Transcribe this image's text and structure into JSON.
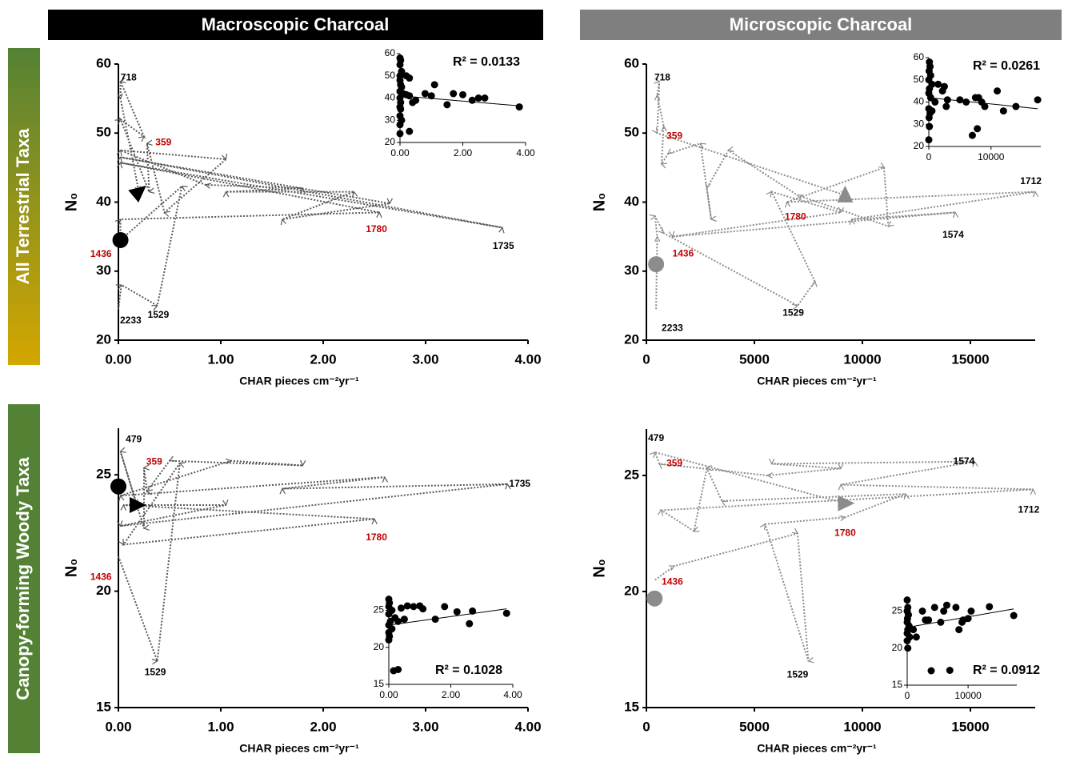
{
  "column_headers": [
    "Macroscopic Charcoal",
    "Microscopic Charcoal"
  ],
  "row_headers": [
    "All Terrestrial Taxa",
    "Canopy-forming Woody Taxa"
  ],
  "chart_data": [
    {
      "type": "line",
      "x_label": "CHAR pieces cm⁻²yr⁻¹",
      "y_label": "N₀",
      "color": "#595959",
      "x": [
        0.0,
        0.03,
        0.38,
        0.62,
        0.02,
        0.02,
        2.55,
        0.02,
        3.75,
        0.02,
        2.65,
        1.6,
        2.3,
        1.05,
        1.8,
        0.85,
        0.02,
        1.05,
        0.45,
        0.28,
        0.3,
        0.02,
        0.25,
        0.02,
        0.02,
        0.2
      ],
      "values": [
        24.5,
        28.0,
        25.0,
        42.3,
        34.5,
        37.5,
        38.5,
        45.7,
        36.3,
        46.5,
        39.8,
        37.5,
        41.5,
        41.5,
        42.0,
        42.5,
        47.5,
        46.2,
        38.5,
        48.5,
        41.5,
        52.0,
        49.5,
        57.5,
        55.0,
        41.5
      ],
      "xlim": [
        0,
        4
      ],
      "xticks": [
        {
          "value": 0,
          "label": "0.00"
        },
        {
          "value": 1,
          "label": "1.00"
        },
        {
          "value": 2,
          "label": "2.00"
        },
        {
          "value": 3,
          "label": "3.00"
        },
        {
          "value": 4,
          "label": "4.00"
        }
      ],
      "ylim": [
        20,
        60
      ],
      "yticks": [
        20,
        30,
        40,
        50,
        60
      ],
      "markers": [
        {
          "shape": "circle",
          "x": 0.02,
          "y": 34.5,
          "color": "#000000"
        },
        {
          "shape": "triangle",
          "x": 0.2,
          "y": 41.5,
          "color": "#000000"
        }
      ],
      "annotations": [
        {
          "text": "718",
          "x": 0.1,
          "y": 58,
          "color": "#000000"
        },
        {
          "text": "359",
          "x": 0.44,
          "y": 48.6,
          "color": "#c00000"
        },
        {
          "text": "1780",
          "x": 2.52,
          "y": 36,
          "color": "#c00000"
        },
        {
          "text": "1735",
          "x": 3.76,
          "y": 33.6,
          "color": "#000000"
        },
        {
          "text": "1529",
          "x": 0.39,
          "y": 23.6,
          "color": "#000000"
        },
        {
          "text": "2233",
          "x": 0.12,
          "y": 22.8,
          "color": "#000000"
        },
        {
          "text": "1436",
          "x": -0.17,
          "y": 32.4,
          "color": "#c00000"
        }
      ],
      "inset": {
        "type": "scatter",
        "color": "#000000",
        "r2_label": "R² = 0.0133",
        "x": [
          0,
          0.02,
          0,
          0.05,
          0,
          0.2,
          0.3,
          0,
          0.02,
          0.05,
          0,
          0.1,
          0.2,
          0.3,
          0,
          0.02,
          0.4,
          0.5,
          0,
          0.02,
          0,
          0.05,
          0,
          0.3,
          0,
          0.8,
          1.0,
          1.1,
          1.5,
          1.7,
          2.0,
          2.3,
          2.5,
          2.7,
          3.8
        ],
        "y": [
          58,
          57,
          55,
          52,
          50,
          50,
          49,
          48,
          46,
          45,
          43,
          42,
          41.5,
          41,
          40,
          38,
          38,
          39,
          36,
          35,
          32,
          30,
          28,
          25,
          24,
          42,
          41,
          46,
          37,
          42,
          41.5,
          39,
          40,
          40,
          36
        ],
        "trend": {
          "x": [
            0,
            3.8
          ],
          "y": [
            41,
            36.5
          ]
        },
        "xlim": [
          0,
          4
        ],
        "xticks": [
          {
            "value": 0,
            "label": "0.00"
          },
          {
            "value": 2,
            "label": "2.00"
          },
          {
            "value": 4,
            "label": "4.00"
          }
        ],
        "ylim": [
          20,
          60
        ],
        "yticks": [
          20,
          30,
          40,
          50,
          60
        ]
      }
    },
    {
      "type": "line",
      "x_label": "CHAR pieces cm⁻²yr⁻¹",
      "y_label": "N₀",
      "color": "#8c8c8c",
      "x": [
        450,
        500,
        400,
        800,
        7000,
        7800,
        5800,
        9000,
        1200,
        14300,
        9500,
        18000,
        6500,
        11000,
        11200,
        7000,
        3800,
        2800,
        3000,
        2500,
        1000,
        700,
        800,
        500,
        600,
        500,
        9200
      ],
      "values": [
        24.5,
        35,
        38,
        35.5,
        25,
        28.5,
        41.5,
        38.5,
        35,
        38.5,
        37.5,
        41.5,
        40,
        45,
        36.5,
        41,
        47.5,
        42,
        37.5,
        48.5,
        47,
        45.5,
        51,
        55.5,
        57.5,
        50,
        41
      ],
      "xlim": [
        0,
        18000
      ],
      "xticks": [
        0,
        5000,
        10000,
        15000
      ],
      "ylim": [
        20,
        60
      ],
      "yticks": [
        20,
        30,
        40,
        50,
        60
      ],
      "markers": [
        {
          "shape": "circle",
          "x": 450,
          "y": 31,
          "color": "#8c8c8c"
        },
        {
          "shape": "triangle",
          "x": 9200,
          "y": 41,
          "color": "#8c8c8c"
        }
      ],
      "annotations": [
        {
          "text": "718",
          "x": 740,
          "y": 58,
          "color": "#000000"
        },
        {
          "text": "359",
          "x": 1300,
          "y": 49.5,
          "color": "#c00000"
        },
        {
          "text": "1780",
          "x": 6900,
          "y": 37.8,
          "color": "#c00000"
        },
        {
          "text": "1574",
          "x": 14200,
          "y": 35.2,
          "color": "#000000"
        },
        {
          "text": "1712",
          "x": 17800,
          "y": 43,
          "color": "#000000"
        },
        {
          "text": "1436",
          "x": 1700,
          "y": 32.5,
          "color": "#c00000"
        },
        {
          "text": "2233",
          "x": 1200,
          "y": 21.7,
          "color": "#000000"
        },
        {
          "text": "1529",
          "x": 6800,
          "y": 23.9,
          "color": "#000000"
        }
      ],
      "inset": {
        "type": "scatter",
        "color": "#000000",
        "r2_label": "R² = 0.0261",
        "x": [
          100,
          200,
          50,
          300,
          0,
          500,
          100,
          1500,
          2200,
          2500,
          0,
          300,
          1000,
          3000,
          5000,
          6000,
          7500,
          8000,
          8500,
          9000,
          11000,
          12000,
          14000,
          17500,
          0,
          200,
          500,
          50,
          100,
          0,
          7000,
          7800,
          2800
        ],
        "y": [
          58,
          56,
          54,
          52,
          50,
          48,
          46,
          48,
          45,
          47,
          44,
          42,
          40,
          41,
          41,
          40,
          42,
          42,
          40,
          38,
          45,
          36,
          38,
          41,
          37,
          35,
          36,
          33,
          29,
          23,
          25,
          28,
          38
        ],
        "trend": {
          "x": [
            0,
            17500
          ],
          "y": [
            42,
            37
          ]
        },
        "xlim": [
          0,
          18000
        ],
        "xticks": [
          0,
          10000
        ],
        "ylim": [
          20,
          60
        ],
        "yticks": [
          20,
          30,
          40,
          50,
          60
        ]
      }
    },
    {
      "type": "line",
      "x_label": "CHAR pieces cm⁻²yr⁻¹",
      "y_label": "N₀",
      "color": "#595959",
      "x": [
        0.0,
        0.38,
        0.6,
        0.05,
        2.5,
        0.05,
        1.05,
        0.02,
        3.8,
        1.6,
        2.6,
        0.02,
        1.1,
        1.8,
        0.5,
        0.28,
        0.25,
        0.25,
        0.02,
        0.18
      ],
      "values": [
        21.5,
        17.0,
        25.5,
        22.0,
        23.1,
        23.7,
        23.7,
        22.8,
        24.6,
        24.4,
        24.9,
        24.1,
        25.6,
        25.4,
        25.6,
        24.3,
        25.3,
        22.7,
        26.0,
        23.7
      ],
      "xlim": [
        0,
        4
      ],
      "xticks": [
        {
          "value": 0,
          "label": "0.00"
        },
        {
          "value": 1,
          "label": "1.00"
        },
        {
          "value": 2,
          "label": "2.00"
        },
        {
          "value": 3,
          "label": "3.00"
        },
        {
          "value": 4,
          "label": "4.00"
        }
      ],
      "ylim": [
        15,
        27
      ],
      "yticks": [
        15,
        20,
        25
      ],
      "markers": [
        {
          "shape": "circle",
          "x": 0.0,
          "y": 24.5,
          "color": "#000000"
        },
        {
          "shape": "triangle",
          "x": 0.18,
          "y": 23.7,
          "color": "#000000"
        }
      ],
      "annotations": [
        {
          "text": "479",
          "x": 0.15,
          "y": 26.5,
          "color": "#000000"
        },
        {
          "text": "359",
          "x": 0.35,
          "y": 25.55,
          "color": "#c00000"
        },
        {
          "text": "1735",
          "x": 3.92,
          "y": 24.6,
          "color": "#000000"
        },
        {
          "text": "1780",
          "x": 2.52,
          "y": 22.3,
          "color": "#c00000"
        },
        {
          "text": "1529",
          "x": 0.36,
          "y": 16.5,
          "color": "#000000"
        },
        {
          "text": "1436",
          "x": -0.17,
          "y": 20.6,
          "color": "#c00000"
        }
      ],
      "inset": {
        "type": "scatter",
        "color": "#000000",
        "r2_label": "R² = 0.1028",
        "x": [
          0,
          0.02,
          0,
          0.1,
          0,
          0.2,
          0.05,
          0,
          0.1,
          0,
          0.02,
          0,
          0.3,
          0.4,
          0.6,
          0.8,
          1.0,
          1.1,
          1.5,
          1.8,
          2.2,
          2.6,
          2.7,
          3.8,
          0.3,
          0.5
        ],
        "y": [
          26.5,
          26,
          25.5,
          25,
          24.5,
          24,
          23.5,
          23,
          22.5,
          22,
          21.5,
          21,
          23.5,
          25.3,
          25.6,
          25.5,
          25.6,
          25.2,
          23.8,
          25.5,
          24.8,
          23.2,
          24.9,
          24.6,
          17,
          23.8
        ],
        "trend": {
          "x": [
            0,
            3.8
          ],
          "y": [
            23,
            25.2
          ]
        },
        "xlim": [
          0,
          4
        ],
        "xticks": [
          {
            "value": 0,
            "label": "0.00"
          },
          {
            "value": 2,
            "label": "2.00"
          },
          {
            "value": 4,
            "label": "4.00"
          }
        ],
        "ylim": [
          15,
          27
        ],
        "yticks": [
          15,
          20,
          25
        ]
      }
    },
    {
      "type": "line",
      "x_label": "CHAR pieces cm⁻²yr⁻¹",
      "y_label": "N₀",
      "color": "#8c8c8c",
      "x": [
        400,
        1300,
        7000,
        7500,
        5500,
        9200,
        12000,
        3500,
        2800,
        2200,
        700,
        17900,
        9000,
        15200,
        5800,
        9000,
        5600,
        600,
        400,
        9200
      ],
      "values": [
        20.5,
        21.1,
        22.5,
        17.0,
        22.9,
        23.2,
        24.2,
        23.9,
        25.3,
        22.6,
        23.5,
        24.4,
        24.6,
        25.6,
        25.5,
        25.3,
        25.0,
        25.5,
        26.0,
        23.8
      ],
      "xlim": [
        0,
        18000
      ],
      "xticks": [
        0,
        5000,
        10000,
        15000
      ],
      "ylim": [
        15,
        27
      ],
      "yticks": [
        15,
        20,
        25
      ],
      "markers": [
        {
          "shape": "circle",
          "x": 380,
          "y": 19.7,
          "color": "#8c8c8c"
        },
        {
          "shape": "triangle",
          "x": 9200,
          "y": 23.8,
          "color": "#8c8c8c"
        }
      ],
      "annotations": [
        {
          "text": "479",
          "x": 450,
          "y": 26.6,
          "color": "#000000"
        },
        {
          "text": "359",
          "x": 1300,
          "y": 25.5,
          "color": "#c00000"
        },
        {
          "text": "1574",
          "x": 14700,
          "y": 25.6,
          "color": "#000000"
        },
        {
          "text": "1712",
          "x": 17700,
          "y": 23.5,
          "color": "#000000"
        },
        {
          "text": "1780",
          "x": 9200,
          "y": 22.5,
          "color": "#c00000"
        },
        {
          "text": "1436",
          "x": 1200,
          "y": 20.4,
          "color": "#c00000"
        },
        {
          "text": "1529",
          "x": 7000,
          "y": 16.4,
          "color": "#000000"
        }
      ],
      "inset": {
        "type": "scatter",
        "color": "#000000",
        "r2_label": "R² = 0.0912",
        "x": [
          0,
          100,
          0,
          200,
          50,
          0,
          300,
          100,
          0,
          400,
          0,
          100,
          1000,
          1500,
          2500,
          3000,
          3500,
          4500,
          5500,
          6000,
          6500,
          7000,
          8000,
          8500,
          9000,
          10000,
          10500,
          13500,
          17500,
          9200
        ],
        "y": [
          26.5,
          25.5,
          25,
          24.5,
          24,
          23.5,
          23,
          22.5,
          22,
          21.5,
          21,
          20,
          22.5,
          21.5,
          25,
          23.8,
          23.8,
          25.5,
          23.5,
          25,
          25.8,
          17,
          25.5,
          22.5,
          23.5,
          24,
          25,
          25.6,
          24.4,
          23.8
        ],
        "trend": {
          "x": [
            0,
            17500
          ],
          "y": [
            22.8,
            25.3
          ]
        },
        "xlim": [
          0,
          18000
        ],
        "xticks": [
          0,
          10000
        ],
        "ylim": [
          15,
          27
        ],
        "yticks": [
          15,
          20,
          25
        ]
      }
    }
  ]
}
